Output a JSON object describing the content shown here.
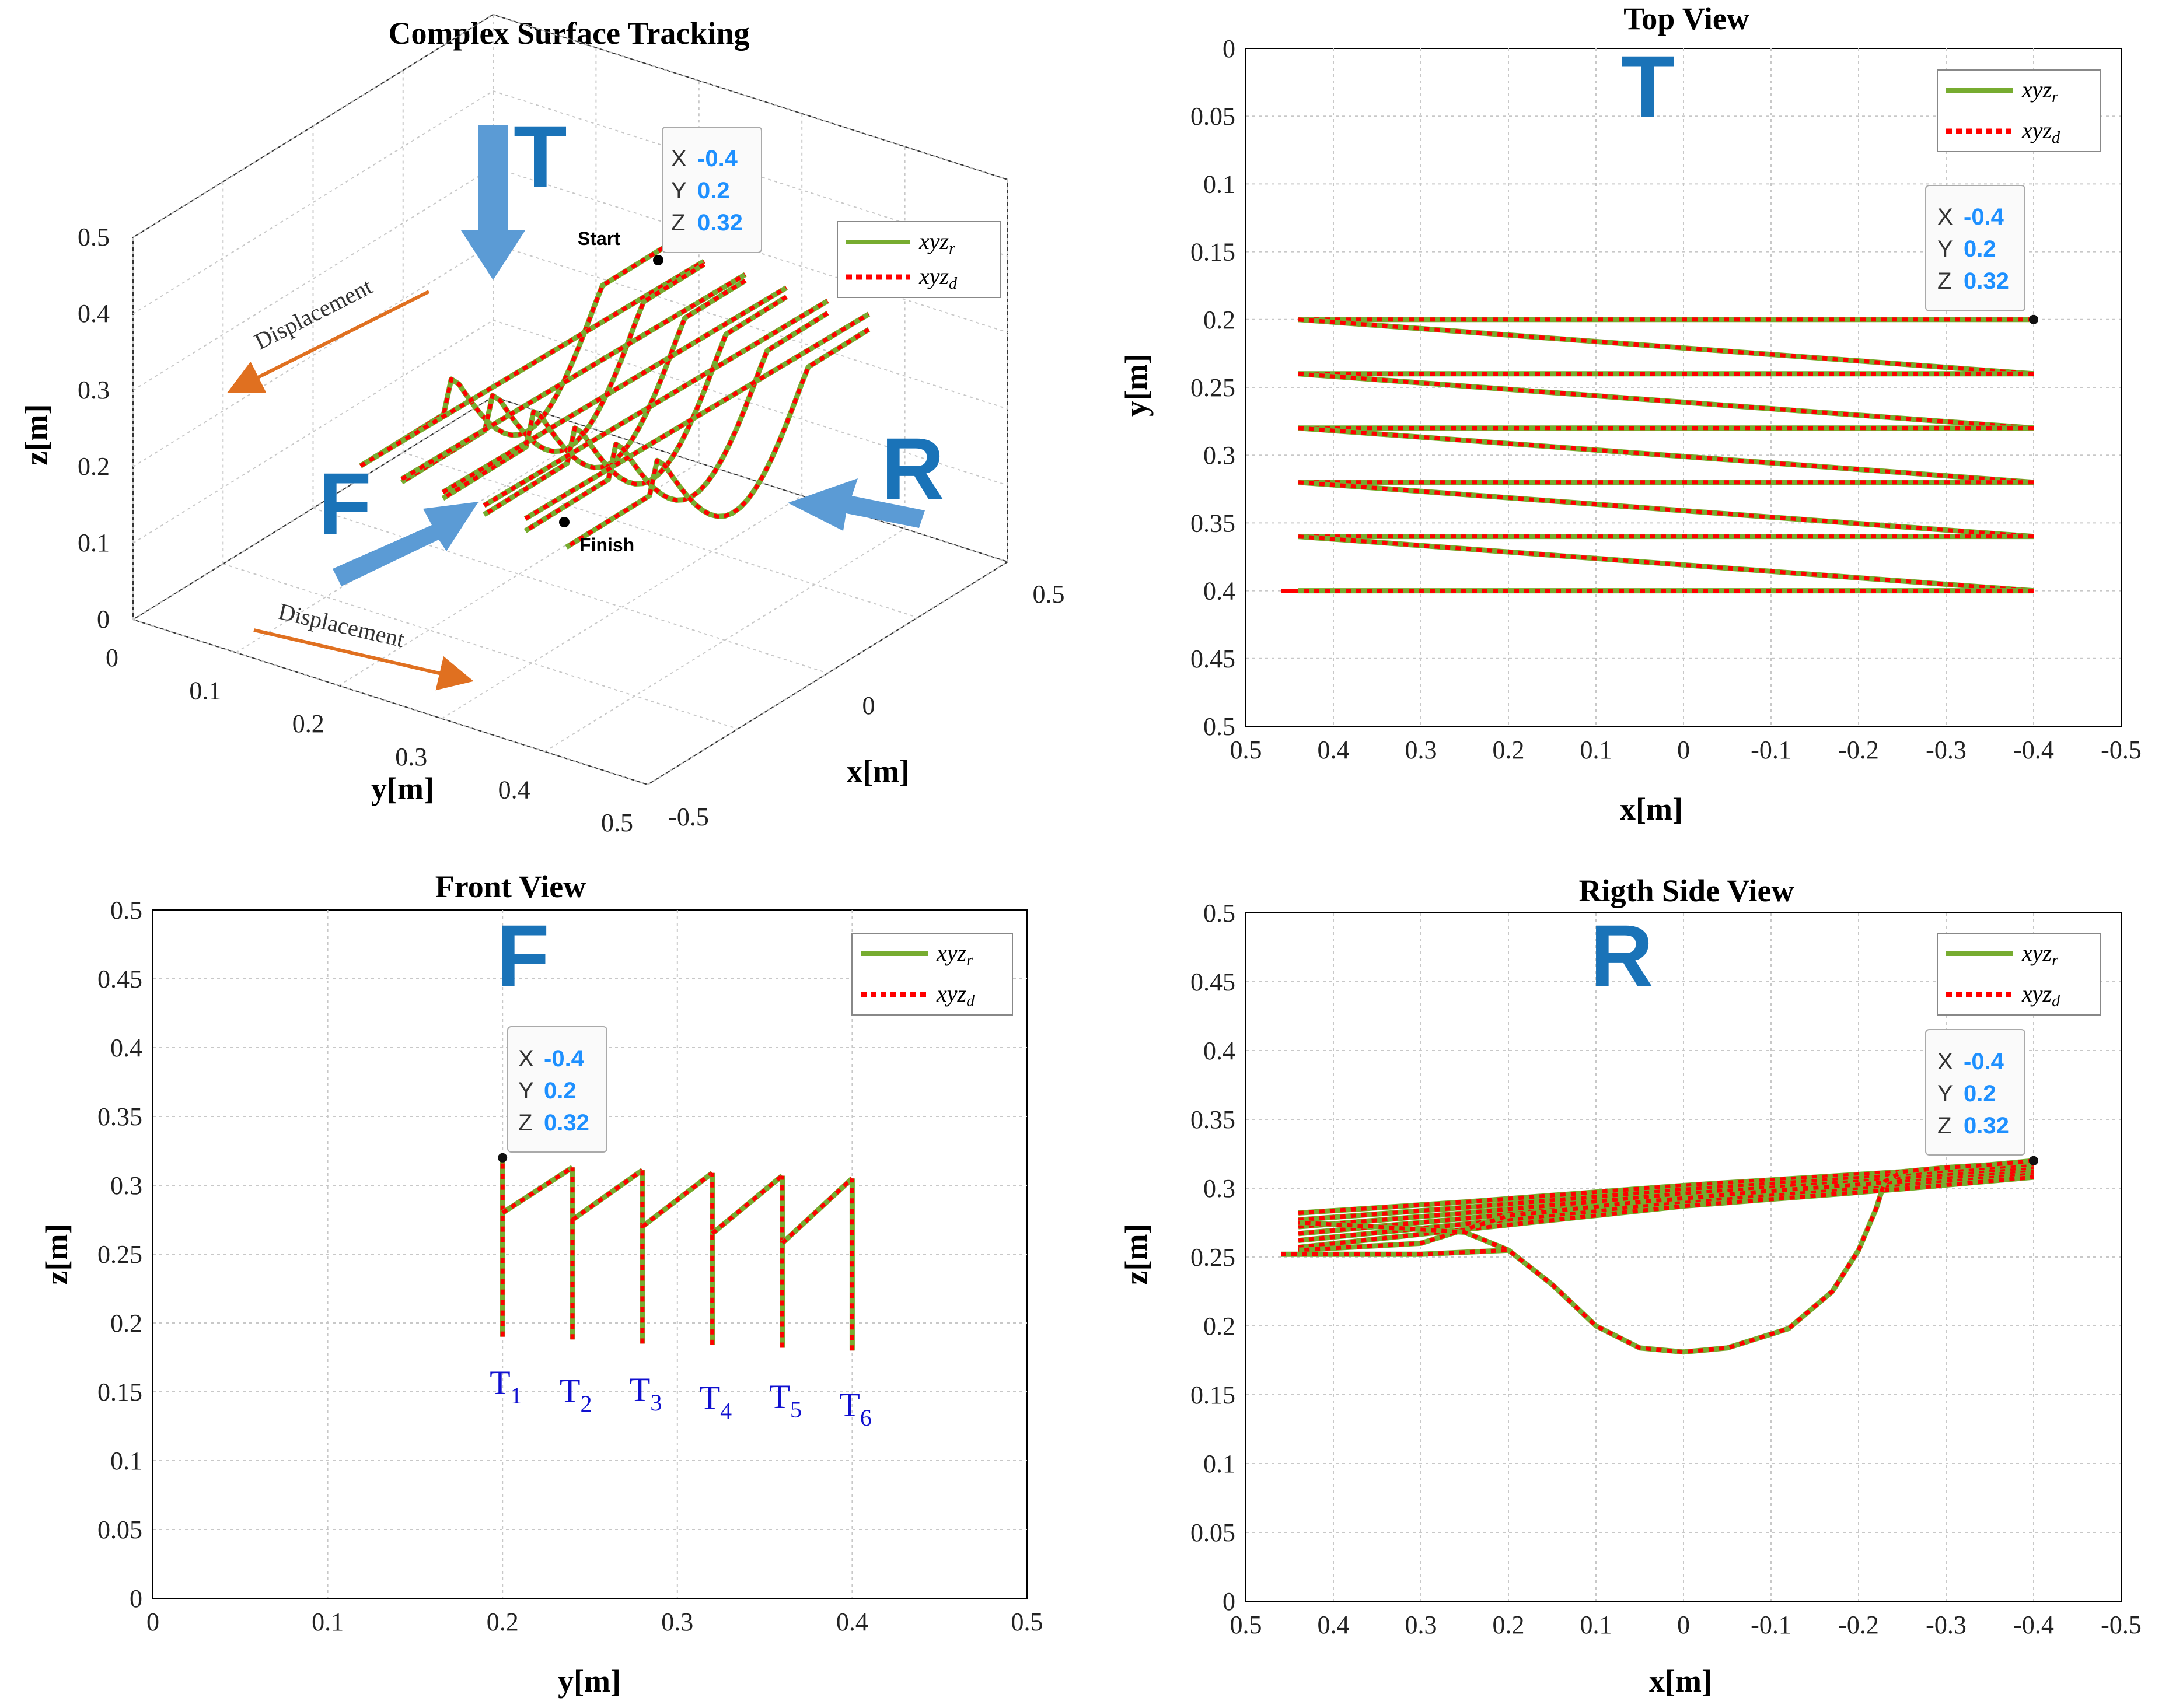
{
  "chart_data": [
    {
      "id": "iso",
      "type": "line-3d",
      "title": "Complex Surface Tracking",
      "xlabel": "x[m]",
      "ylabel": "y[m]",
      "zlabel": "z[m]",
      "x_ticks": [
        "-0.5",
        "0",
        "0.5"
      ],
      "y_ticks": [
        "0",
        "0.1",
        "0.2",
        "0.3",
        "0.4",
        "0.5"
      ],
      "z_ticks": [
        "0",
        "0.1",
        "0.2",
        "0.3",
        "0.4",
        "0.5"
      ],
      "xlim": [
        -0.5,
        0.5
      ],
      "ylim": [
        0,
        0.5
      ],
      "zlim": [
        0,
        0.5
      ],
      "legend": [
        "xyz_r",
        "xyz_d"
      ],
      "datatip": {
        "x_key": "X",
        "x": "-0.4",
        "y_key": "Y",
        "y": "0.2",
        "z_key": "Z",
        "z": "0.32"
      },
      "annotations": {
        "start": "Start",
        "finish": "Finish",
        "displacement_top": "Displacement",
        "displacement_bottom": "Displacement"
      },
      "view_markers": {
        "top": "T",
        "front": "F",
        "right": "R"
      }
    },
    {
      "id": "top",
      "type": "line",
      "title": "Top View",
      "xlabel": "x[m]",
      "ylabel": "y[m]",
      "x_ticks": [
        "0.5",
        "0.4",
        "0.3",
        "0.2",
        "0.1",
        "0",
        "-0.1",
        "-0.2",
        "-0.3",
        "-0.4",
        "-0.5"
      ],
      "y_ticks": [
        "0",
        "0.05",
        "0.1",
        "0.15",
        "0.2",
        "0.25",
        "0.3",
        "0.35",
        "0.4",
        "0.45",
        "0.5"
      ],
      "xlim": [
        0.5,
        -0.5
      ],
      "ylim": [
        0,
        0.5
      ],
      "legend": [
        "xyz_r",
        "xyz_d"
      ],
      "view_marker": "T",
      "datatip": {
        "x_key": "X",
        "x": "-0.4",
        "y_key": "Y",
        "y": "0.2",
        "z_key": "Z",
        "z": "0.32"
      },
      "tracks": [
        {
          "y_start": 0.2,
          "y_end": 0.24
        },
        {
          "y_start": 0.24,
          "y_end": 0.28
        },
        {
          "y_start": 0.28,
          "y_end": 0.32
        },
        {
          "y_start": 0.32,
          "y_end": 0.36
        },
        {
          "y_start": 0.36,
          "y_end": 0.4
        },
        {
          "y_start": 0.4,
          "y_end": 0.4
        }
      ],
      "x_range": [
        -0.4,
        0.44
      ]
    },
    {
      "id": "front",
      "type": "line",
      "title": "Front View",
      "xlabel": "y[m]",
      "ylabel": "z[m]",
      "x_ticks": [
        "0",
        "0.1",
        "0.2",
        "0.3",
        "0.4",
        "0.5"
      ],
      "y_ticks": [
        "0",
        "0.05",
        "0.1",
        "0.15",
        "0.2",
        "0.25",
        "0.3",
        "0.35",
        "0.4",
        "0.45",
        "0.5"
      ],
      "xlim": [
        0,
        0.5
      ],
      "ylim": [
        0,
        0.5
      ],
      "legend": [
        "xyz_r",
        "xyz_d"
      ],
      "view_marker": "F",
      "datatip": {
        "x_key": "X",
        "x": "-0.4",
        "y_key": "Y",
        "y": "0.2",
        "z_key": "Z",
        "z": "0.32"
      },
      "profiles": [
        {
          "y": 0.2,
          "z_top": 0.32,
          "z_low": 0.28,
          "z_bottom": 0.19
        },
        {
          "y": 0.24,
          "z_top": 0.313,
          "z_low": 0.275,
          "z_bottom": 0.188
        },
        {
          "y": 0.28,
          "z_top": 0.311,
          "z_low": 0.27,
          "z_bottom": 0.185
        },
        {
          "y": 0.32,
          "z_top": 0.309,
          "z_low": 0.265,
          "z_bottom": 0.184
        },
        {
          "y": 0.36,
          "z_top": 0.307,
          "z_low": 0.258,
          "z_bottom": 0.182
        },
        {
          "y": 0.4,
          "z_top": 0.305,
          "z_low": 0.305,
          "z_bottom": 0.18
        }
      ],
      "track_labels": [
        {
          "main": "T",
          "sub": "1"
        },
        {
          "main": "T",
          "sub": "2"
        },
        {
          "main": "T",
          "sub": "3"
        },
        {
          "main": "T",
          "sub": "4"
        },
        {
          "main": "T",
          "sub": "5"
        },
        {
          "main": "T",
          "sub": "6"
        }
      ]
    },
    {
      "id": "side",
      "type": "line",
      "title": "Rigth Side View",
      "xlabel": "x[m]",
      "ylabel": "z[m]",
      "x_ticks": [
        "0.5",
        "0.4",
        "0.3",
        "0.2",
        "0.1",
        "0",
        "-0.1",
        "-0.2",
        "-0.3",
        "-0.4",
        "-0.5"
      ],
      "y_ticks": [
        "0",
        "0.05",
        "0.1",
        "0.15",
        "0.2",
        "0.25",
        "0.3",
        "0.35",
        "0.4",
        "0.45",
        "0.5"
      ],
      "xlim": [
        0.5,
        -0.5
      ],
      "ylim": [
        0,
        0.5
      ],
      "legend": [
        "xyz_r",
        "xyz_d"
      ],
      "view_marker": "R",
      "datatip": {
        "x_key": "X",
        "x": "-0.4",
        "y_key": "Y",
        "y": "0.2",
        "z_key": "Z",
        "z": "0.32"
      },
      "profile": [
        [
          -0.4,
          0.32
        ],
        [
          -0.35,
          0.317
        ],
        [
          -0.3,
          0.315
        ],
        [
          -0.25,
          0.312
        ],
        [
          -0.23,
          0.305
        ],
        [
          -0.22,
          0.285
        ],
        [
          -0.2,
          0.255
        ],
        [
          -0.17,
          0.225
        ],
        [
          -0.12,
          0.198
        ],
        [
          -0.05,
          0.184
        ],
        [
          0.0,
          0.181
        ],
        [
          0.05,
          0.184
        ],
        [
          0.1,
          0.2
        ],
        [
          0.15,
          0.23
        ],
        [
          0.2,
          0.255
        ],
        [
          0.25,
          0.268
        ],
        [
          0.35,
          0.272
        ],
        [
          0.44,
          0.275
        ]
      ],
      "profile_low": [
        [
          -0.25,
          0.305
        ],
        [
          -0.1,
          0.298
        ],
        [
          0.05,
          0.29
        ],
        [
          0.2,
          0.28
        ],
        [
          0.3,
          0.26
        ],
        [
          0.44,
          0.255
        ]
      ]
    }
  ],
  "colors": {
    "ref": "#77ac30",
    "des": "#ff0000",
    "marker_blue": "#1a73b8",
    "arrow_blue": "#5b9bd5",
    "arrow_orange": "#e07020",
    "grid": "#c8c8c8",
    "tsub_blue": "#1010d0"
  }
}
